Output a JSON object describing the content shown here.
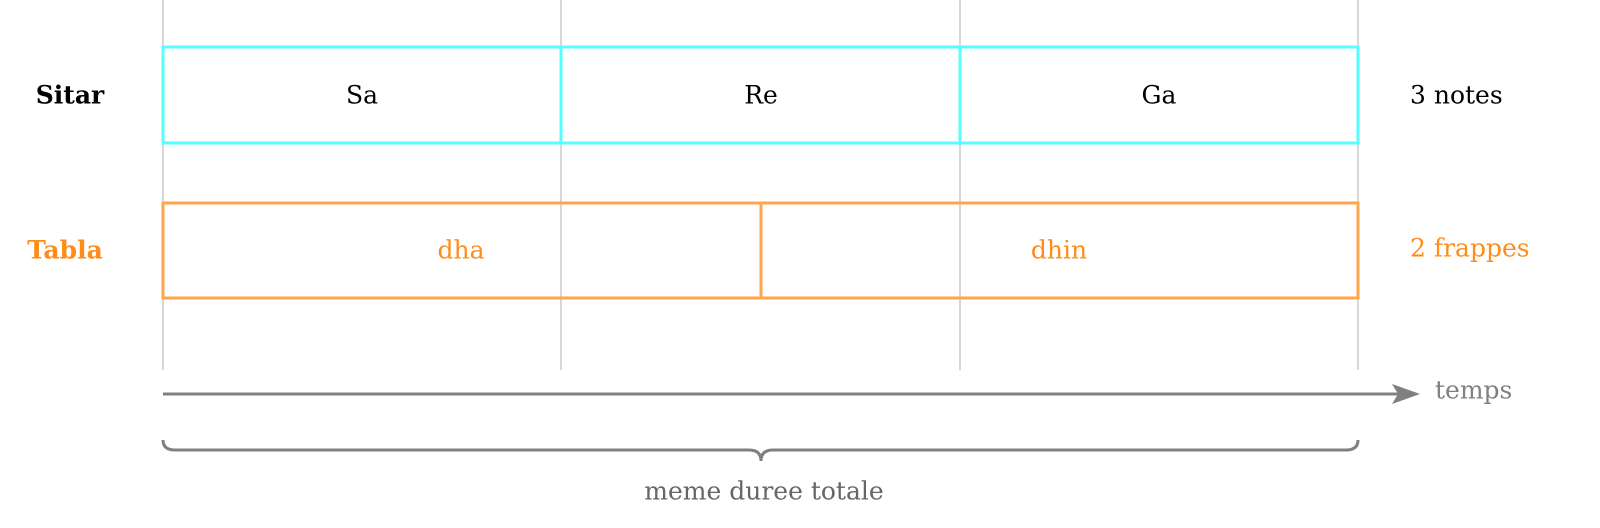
{
  "colors": {
    "sitar": "#55ffff",
    "tabla_box": "#ffa64d",
    "tabla_text": "#ff8c1a",
    "axis": "#808080",
    "grid": "#cccccc",
    "caption": "#666666"
  },
  "sitar": {
    "label": "Sitar",
    "notes": [
      "Sa",
      "Re",
      "Ga"
    ],
    "count_label": "3 notes"
  },
  "tabla": {
    "label": "Tabla",
    "strokes": [
      "dha",
      "dhin"
    ],
    "count_label": "2 frappes"
  },
  "axis": {
    "label": "temps"
  },
  "brace": {
    "label": "meme duree totale"
  }
}
